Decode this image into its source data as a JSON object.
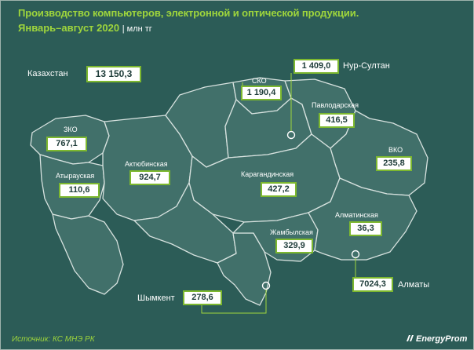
{
  "title": "Производство компьютеров, электронной и оптической продукции.",
  "period": "Январь–август 2020",
  "unit": "| млн тг",
  "country": {
    "name": "Казахстан",
    "value": "13 150,3"
  },
  "regions": [
    {
      "name": "ЗКО",
      "value": "767,1"
    },
    {
      "name": "Атырауская",
      "value": "110,6"
    },
    {
      "name": "Актюбинская",
      "value": "924,7"
    },
    {
      "name": "СКО",
      "value": "1 190,4"
    },
    {
      "name": "Павлодарская",
      "value": "416,5"
    },
    {
      "name": "ВКО",
      "value": "235,8"
    },
    {
      "name": "Карагандинская",
      "value": "427,2"
    },
    {
      "name": "Алматинская",
      "value": "36,3"
    },
    {
      "name": "Жамбылская",
      "value": "329,9"
    }
  ],
  "cities": [
    {
      "name": "Нур-Султан",
      "value": "1 409,0"
    },
    {
      "name": "Алматы",
      "value": "7024,3"
    },
    {
      "name": "Шымкент",
      "value": "278,6"
    }
  ],
  "source": "Источник: КС МНЭ РК",
  "brand": "EnergyProm",
  "colors": {
    "background": "#2c5c57",
    "land": "#41706a",
    "accent": "#9fd63c",
    "box_border": "#7db82f"
  }
}
